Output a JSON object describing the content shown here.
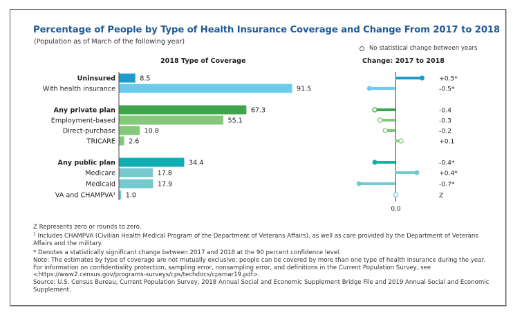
{
  "title": "Percentage of People by Type of Health Insurance Coverage and Change From 2017 to 2018",
  "subtitle": "(Population as of March of the following year)",
  "legend": {
    "icon": "open-circle-icon",
    "label": "No statistical change between years"
  },
  "chart_data": [
    {
      "type": "bar",
      "orientation": "horizontal",
      "title": "2018 Type of Coverage",
      "xlim": [
        0,
        100
      ],
      "grid": false,
      "categories": [
        "Uninsured",
        "With health insurance",
        "Any private plan",
        "Employment-based",
        "Direct-purchase",
        "TRICARE",
        "Any public plan",
        "Medicare",
        "Medicaid",
        "VA and CHAMPVA"
      ],
      "category_bold": [
        true,
        false,
        true,
        false,
        false,
        false,
        true,
        false,
        false,
        false
      ],
      "category_superscript": [
        "",
        "",
        "",
        "",
        "",
        "",
        "",
        "",
        "",
        "1"
      ],
      "groups": [
        "insurance",
        "insurance",
        "private",
        "private",
        "private",
        "private",
        "public",
        "public",
        "public",
        "public"
      ],
      "values": [
        8.5,
        91.5,
        67.3,
        55.1,
        10.8,
        2.6,
        34.4,
        17.8,
        17.9,
        1.0
      ],
      "value_labels": [
        "8.5",
        "91.5",
        "67.3",
        "55.1",
        "10.8",
        "2.6",
        "34.4",
        "17.8",
        "17.9",
        "1.0"
      ],
      "colors": [
        "#1d9bc9",
        "#6bcbea",
        "#3ea54b",
        "#84c87a",
        "#84c87a",
        "#84c87a",
        "#10aeb3",
        "#76c9cf",
        "#76c9cf",
        "#76c9cf"
      ]
    },
    {
      "type": "scatter",
      "subtype": "lollipop",
      "title": "Change: 2017 to 2018",
      "xlim": [
        -0.7,
        0.5
      ],
      "xtick_labels": [
        "0.0"
      ],
      "categories": [
        "Uninsured",
        "With health insurance",
        "Any private plan",
        "Employment-based",
        "Direct-purchase",
        "TRICARE",
        "Any public plan",
        "Medicare",
        "Medicaid",
        "VA and CHAMPVA"
      ],
      "values": [
        0.5,
        -0.5,
        -0.4,
        -0.3,
        -0.2,
        0.1,
        -0.4,
        0.4,
        -0.7,
        0.0
      ],
      "value_labels": [
        "+0.5*",
        "-0.5*",
        "-0.4",
        "-0.3",
        "-0.2",
        "+0.1",
        "-0.4*",
        "+0.4*",
        "-0.7*",
        "Z"
      ],
      "significant": [
        true,
        true,
        false,
        false,
        false,
        false,
        true,
        true,
        true,
        false
      ],
      "colors": [
        "#1d9bc9",
        "#6bcbea",
        "#3ea54b",
        "#84c87a",
        "#84c87a",
        "#84c87a",
        "#10aeb3",
        "#76c9cf",
        "#76c9cf",
        "#76c9cf"
      ]
    }
  ],
  "footnotes": {
    "z": "Z Represents zero or rounds to zero.",
    "one_marker": "1",
    "one": " Includes CHAMPVA (Civilian Health Medical Program of the Department of Veterans Affairs), as well as care provided by the Department of Veterans Affairs and the military.",
    "star": "* Denotes a statistically significant change between 2017 and 2018 at the 90 percent confidence level.",
    "note": "Note: The estimates by type of coverage are not mutually exclusive; people can be covered by more than one type of health insurance during the year. For information on confidentiality protection, sampling error, nonsampling error, and definitions in the Current Population Survey, see <https://www2.census.gov/programs-surveys/cps/techdocs/cpsmar19.pdf>.",
    "source": "Source: U.S. Census Bureau, Current Population Survey, 2018 Annual Social and Economic Supplement Bridge File and 2019 Annual Social and Economic Supplement."
  }
}
